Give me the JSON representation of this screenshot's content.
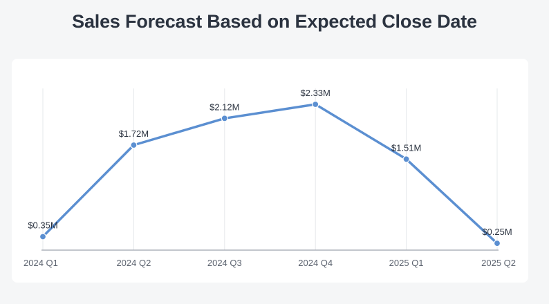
{
  "chart_data": {
    "type": "line",
    "title": "Sales Forecast Based on Expected Close Date",
    "xlabel": "",
    "ylabel": "",
    "categories": [
      "2024 Q1",
      "2024 Q2",
      "2024 Q3",
      "2024 Q4",
      "2025 Q1",
      "2025 Q2"
    ],
    "series": [
      {
        "values": [
          0.35,
          1.72,
          2.12,
          2.33,
          1.51,
          0.25
        ],
        "labels": [
          "$0.35M",
          "$1.72M",
          "$2.12M",
          "$2.33M",
          "$1.51M",
          "$0.25M"
        ],
        "color": "#5b8fd1"
      }
    ],
    "ylim": [
      0.2,
      2.33
    ],
    "grid": "vertical",
    "legend": "none"
  }
}
